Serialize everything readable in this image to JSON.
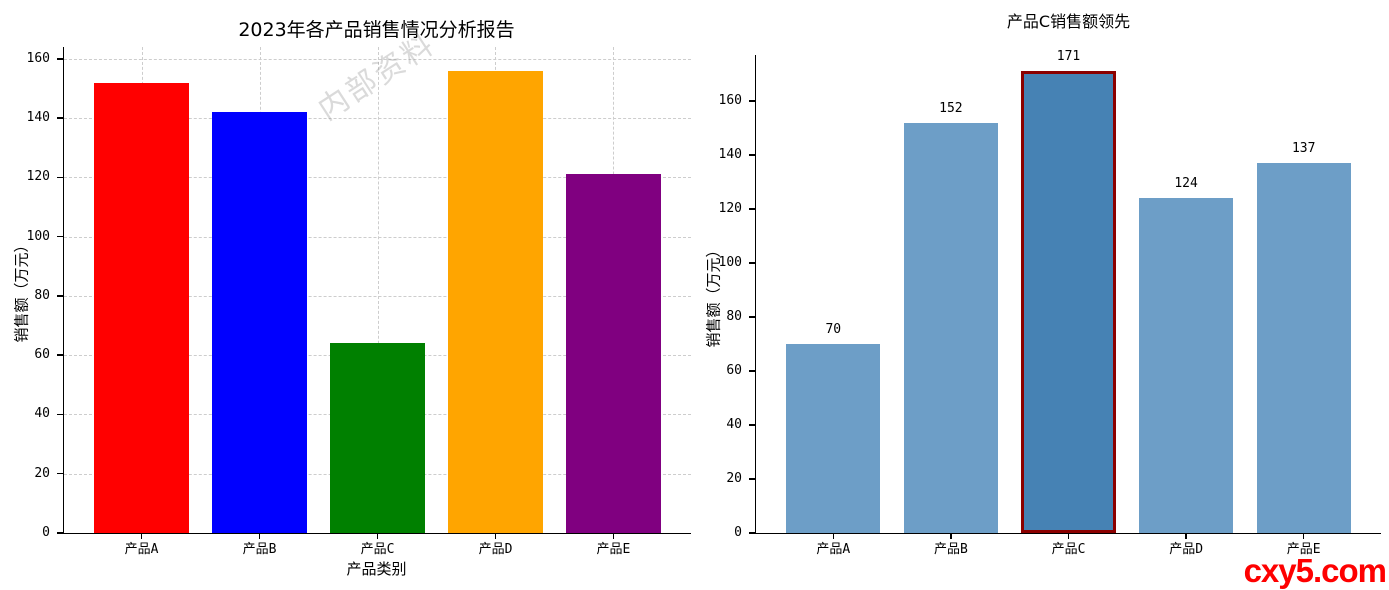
{
  "watermarks": {
    "internal": {
      "text": "内部资料",
      "color": "rgba(140,140,140,0.32)"
    },
    "site": {
      "text": "cxy5.com",
      "color": "#fe0000"
    }
  },
  "axis_color": "#000000",
  "grid_color": "#cdcdcd",
  "chart_data": [
    {
      "type": "bar",
      "title": "2023年各产品销售情况分析报告",
      "xlabel": "产品类别",
      "ylabel": "销售额（万元）",
      "categories": [
        "产品A",
        "产品B",
        "产品C",
        "产品D",
        "产品E"
      ],
      "values": [
        152,
        142,
        64,
        156,
        121
      ],
      "colors": [
        "#ff0000",
        "#0000ff",
        "#008000",
        "#ffa500",
        "#800080"
      ],
      "ylim": [
        0,
        164
      ],
      "yticks": [
        0,
        20,
        40,
        60,
        80,
        100,
        120,
        140,
        160
      ],
      "grid": true,
      "grid_style": "dashed",
      "value_labels": false,
      "legend": "none"
    },
    {
      "type": "bar",
      "title": "产品C销售额领先",
      "xlabel": "",
      "ylabel": "销售额（万元）",
      "categories": [
        "产品A",
        "产品B",
        "产品C",
        "产品D",
        "产品E"
      ],
      "values": [
        70,
        152,
        171,
        124,
        137
      ],
      "bar_color": "#6d9ec7",
      "highlight": {
        "index": 2,
        "color": "#4682b4",
        "border_color": "#8b0000",
        "border_width": 3
      },
      "ylim": [
        0,
        177
      ],
      "yticks": [
        0,
        20,
        40,
        60,
        80,
        100,
        120,
        140,
        160
      ],
      "grid": false,
      "value_labels": true,
      "legend": "none"
    }
  ]
}
